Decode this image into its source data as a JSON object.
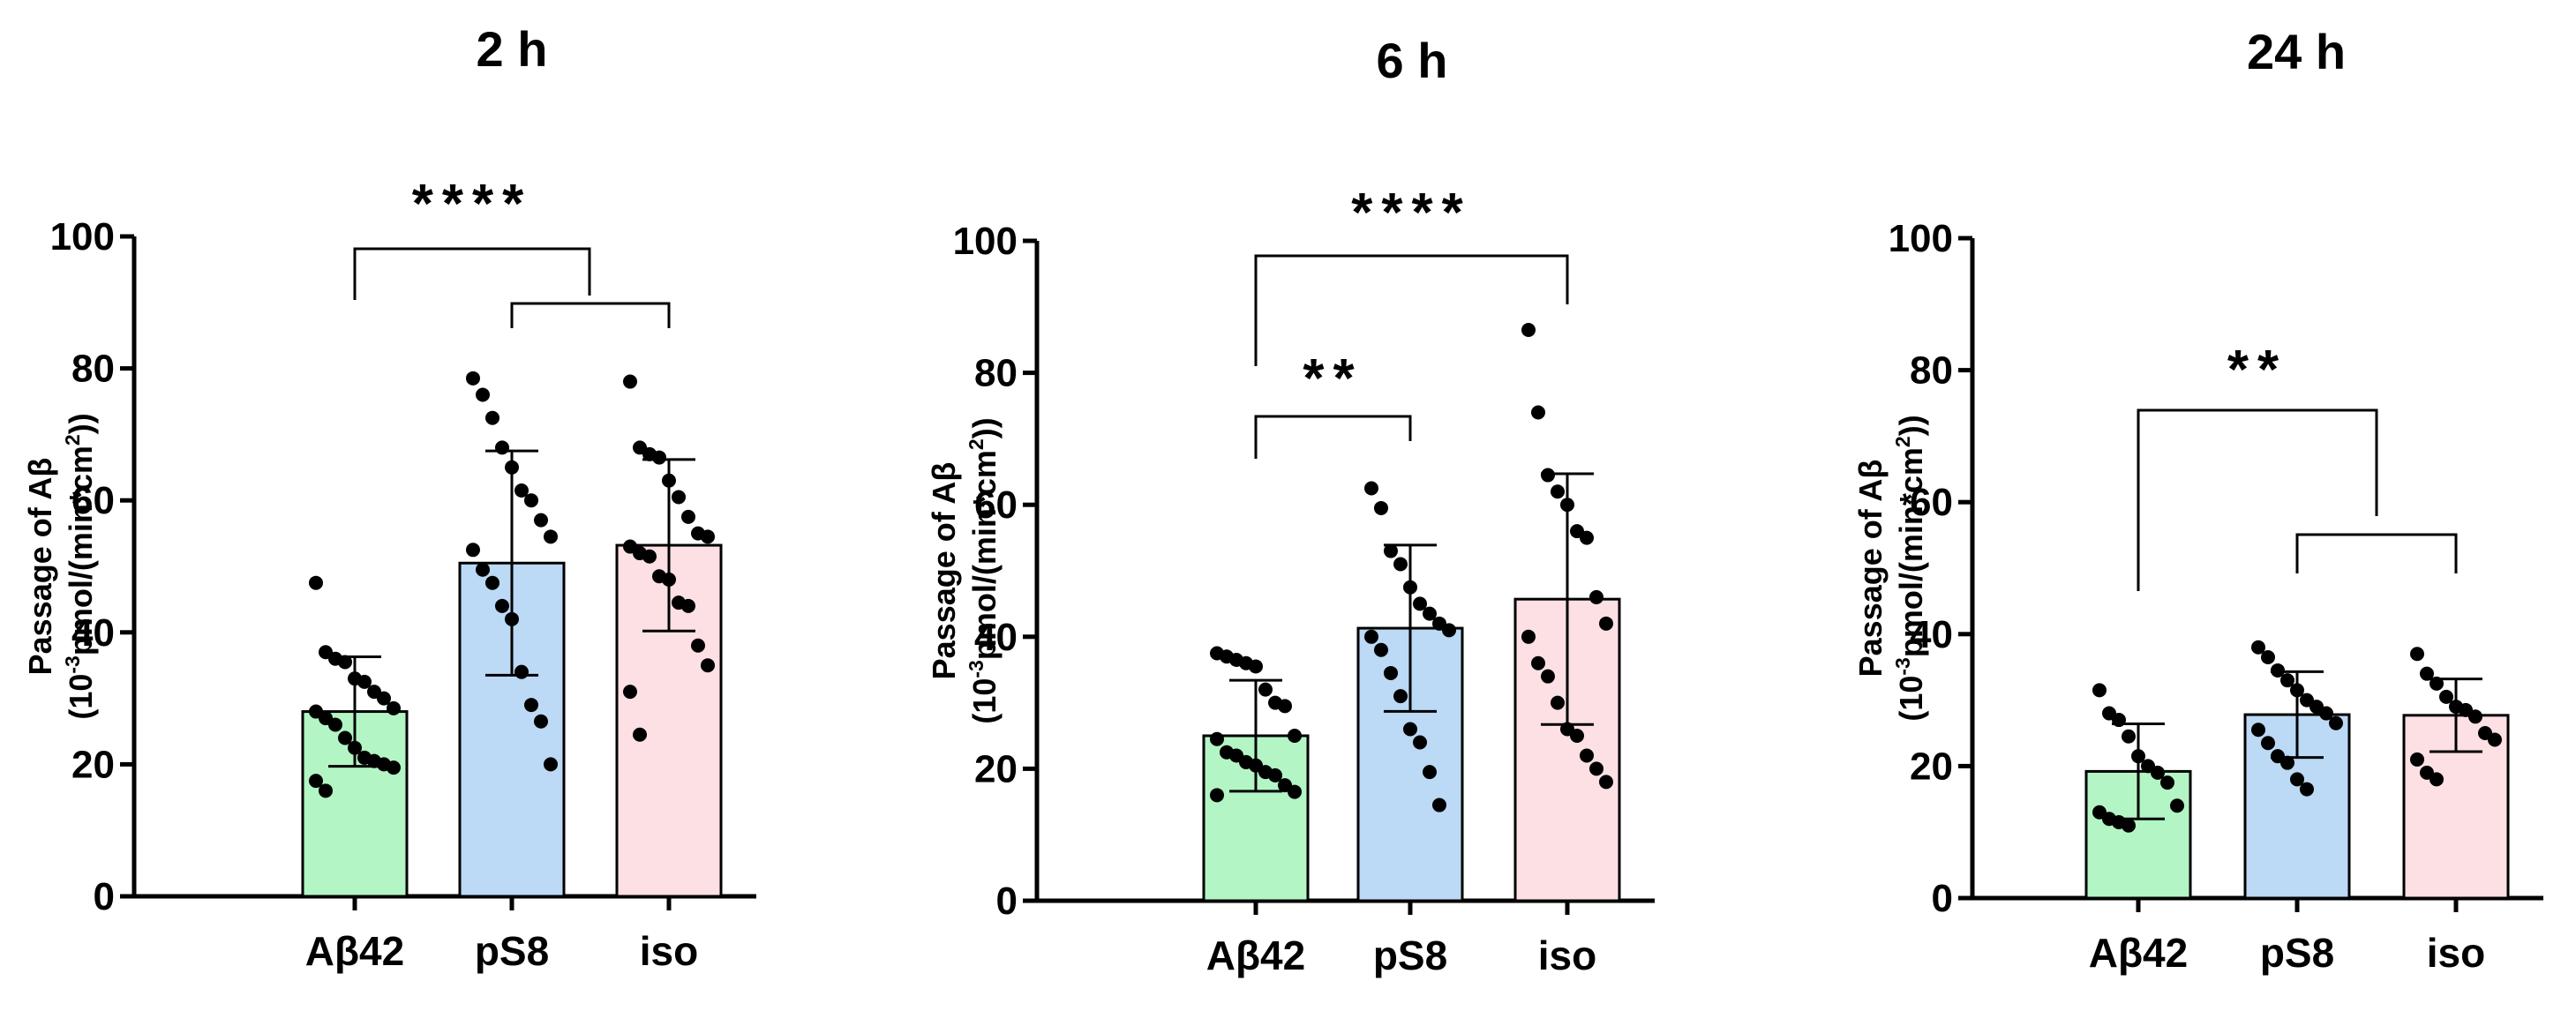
{
  "chart_data": [
    {
      "type": "bar",
      "title": "2 h",
      "ylabel_line1": "Passage of Aβ",
      "ylabel_line2_prefix": "(10",
      "ylabel_line2_sup": "-3",
      "ylabel_line2_mid": "pmol/(min*cm",
      "ylabel_line2_sup2": "2",
      "ylabel_line2_suffix": "))",
      "ylim": [
        0,
        100
      ],
      "yticks": [
        "0",
        "20",
        "40",
        "60",
        "80",
        "100"
      ],
      "categories": [
        "Aβ42",
        "pS8",
        "iso"
      ],
      "colors": [
        "#b3f5c4",
        "#bcd9f5",
        "#fde0e3"
      ],
      "values": [
        28,
        50.5,
        53.2
      ],
      "sd": [
        8.3,
        17,
        13
      ],
      "points": [
        [
          47.5,
          37,
          36,
          35.5,
          33,
          32.5,
          31,
          30,
          28.5,
          28,
          27,
          26,
          24,
          22.5,
          21,
          20.5,
          20,
          19.5,
          17.5,
          16
        ],
        [
          78.5,
          76,
          72.5,
          68,
          65,
          61.5,
          60,
          57,
          54.5,
          52.5,
          49.5,
          47.5,
          44,
          42,
          34,
          29,
          26.5,
          20
        ],
        [
          78,
          68,
          67,
          66.5,
          63,
          60.5,
          57.5,
          55,
          54.5,
          53,
          52,
          51.5,
          48.5,
          48,
          44.5,
          44,
          38,
          35,
          31,
          24.5
        ]
      ],
      "significance": [
        {
          "from": 0,
          "to": 1,
          "label": "****"
        },
        {
          "from": 1,
          "to": 2,
          "label": ""
        }
      ]
    },
    {
      "type": "bar",
      "title": "6 h",
      "ylabel_line1": "Passage of Aβ",
      "ylabel_line2_prefix": "(10",
      "ylabel_line2_sup": "-3",
      "ylabel_line2_mid": "pmol/(min*cm",
      "ylabel_line2_sup2": "2",
      "ylabel_line2_suffix": "))",
      "ylim": [
        0,
        100
      ],
      "yticks": [
        "0",
        "20",
        "40",
        "60",
        "80",
        "100"
      ],
      "categories": [
        "Aβ42",
        "pS8",
        "iso"
      ],
      "colors": [
        "#b3f5c4",
        "#bcd9f5",
        "#fde0e3"
      ],
      "values": [
        25,
        41.3,
        45.7
      ],
      "sd": [
        8.4,
        12.6,
        19
      ],
      "points": [
        [
          37.5,
          37,
          36.5,
          36,
          35.5,
          32,
          30,
          29.5,
          25,
          24.5,
          22.5,
          22,
          21,
          20.5,
          19.5,
          19,
          17.5,
          16.5,
          16
        ],
        [
          62.5,
          59.5,
          53,
          51,
          47.5,
          45,
          43.5,
          42,
          41,
          40,
          38,
          34.5,
          31,
          26,
          24,
          19.5,
          14.5
        ],
        [
          86.5,
          74,
          64.5,
          62,
          60,
          56,
          55,
          46,
          42,
          40,
          36,
          34,
          30,
          26,
          25,
          22,
          20,
          18
        ]
      ],
      "significance": [
        {
          "from": 0,
          "to": 2,
          "label": "****"
        },
        {
          "from": 0,
          "to": 1,
          "label": "**"
        }
      ]
    },
    {
      "type": "bar",
      "title": "24 h",
      "ylabel_line1": "Passage of Aβ",
      "ylabel_line2_prefix": "(10",
      "ylabel_line2_sup": "-3",
      "ylabel_line2_mid": "pmol/(min*cm",
      "ylabel_line2_sup2": "2",
      "ylabel_line2_suffix": "))",
      "ylim": [
        0,
        100
      ],
      "yticks": [
        "0",
        "20",
        "40",
        "60",
        "80",
        "100"
      ],
      "categories": [
        "Aβ42",
        "pS8",
        "iso"
      ],
      "colors": [
        "#b3f5c4",
        "#bcd9f5",
        "#fde0e3"
      ],
      "values": [
        19.2,
        27.8,
        27.7
      ],
      "sd": [
        7.2,
        6.5,
        5.5
      ],
      "points": [
        [
          31.5,
          28,
          27,
          24.5,
          21.5,
          20,
          19,
          17.5,
          14,
          13,
          12,
          11.5,
          11
        ],
        [
          38,
          36.5,
          34.5,
          33,
          31.5,
          30,
          29,
          28,
          26.5,
          25.5,
          23.5,
          21.5,
          20.5,
          18,
          16.5
        ],
        [
          37,
          34,
          32.5,
          30.5,
          29,
          28.5,
          27.5,
          25,
          24,
          21,
          19,
          18
        ]
      ],
      "significance": [
        {
          "from": 0,
          "to": 1,
          "label": "**"
        },
        {
          "from": 1,
          "to": 2,
          "label": ""
        }
      ]
    }
  ]
}
